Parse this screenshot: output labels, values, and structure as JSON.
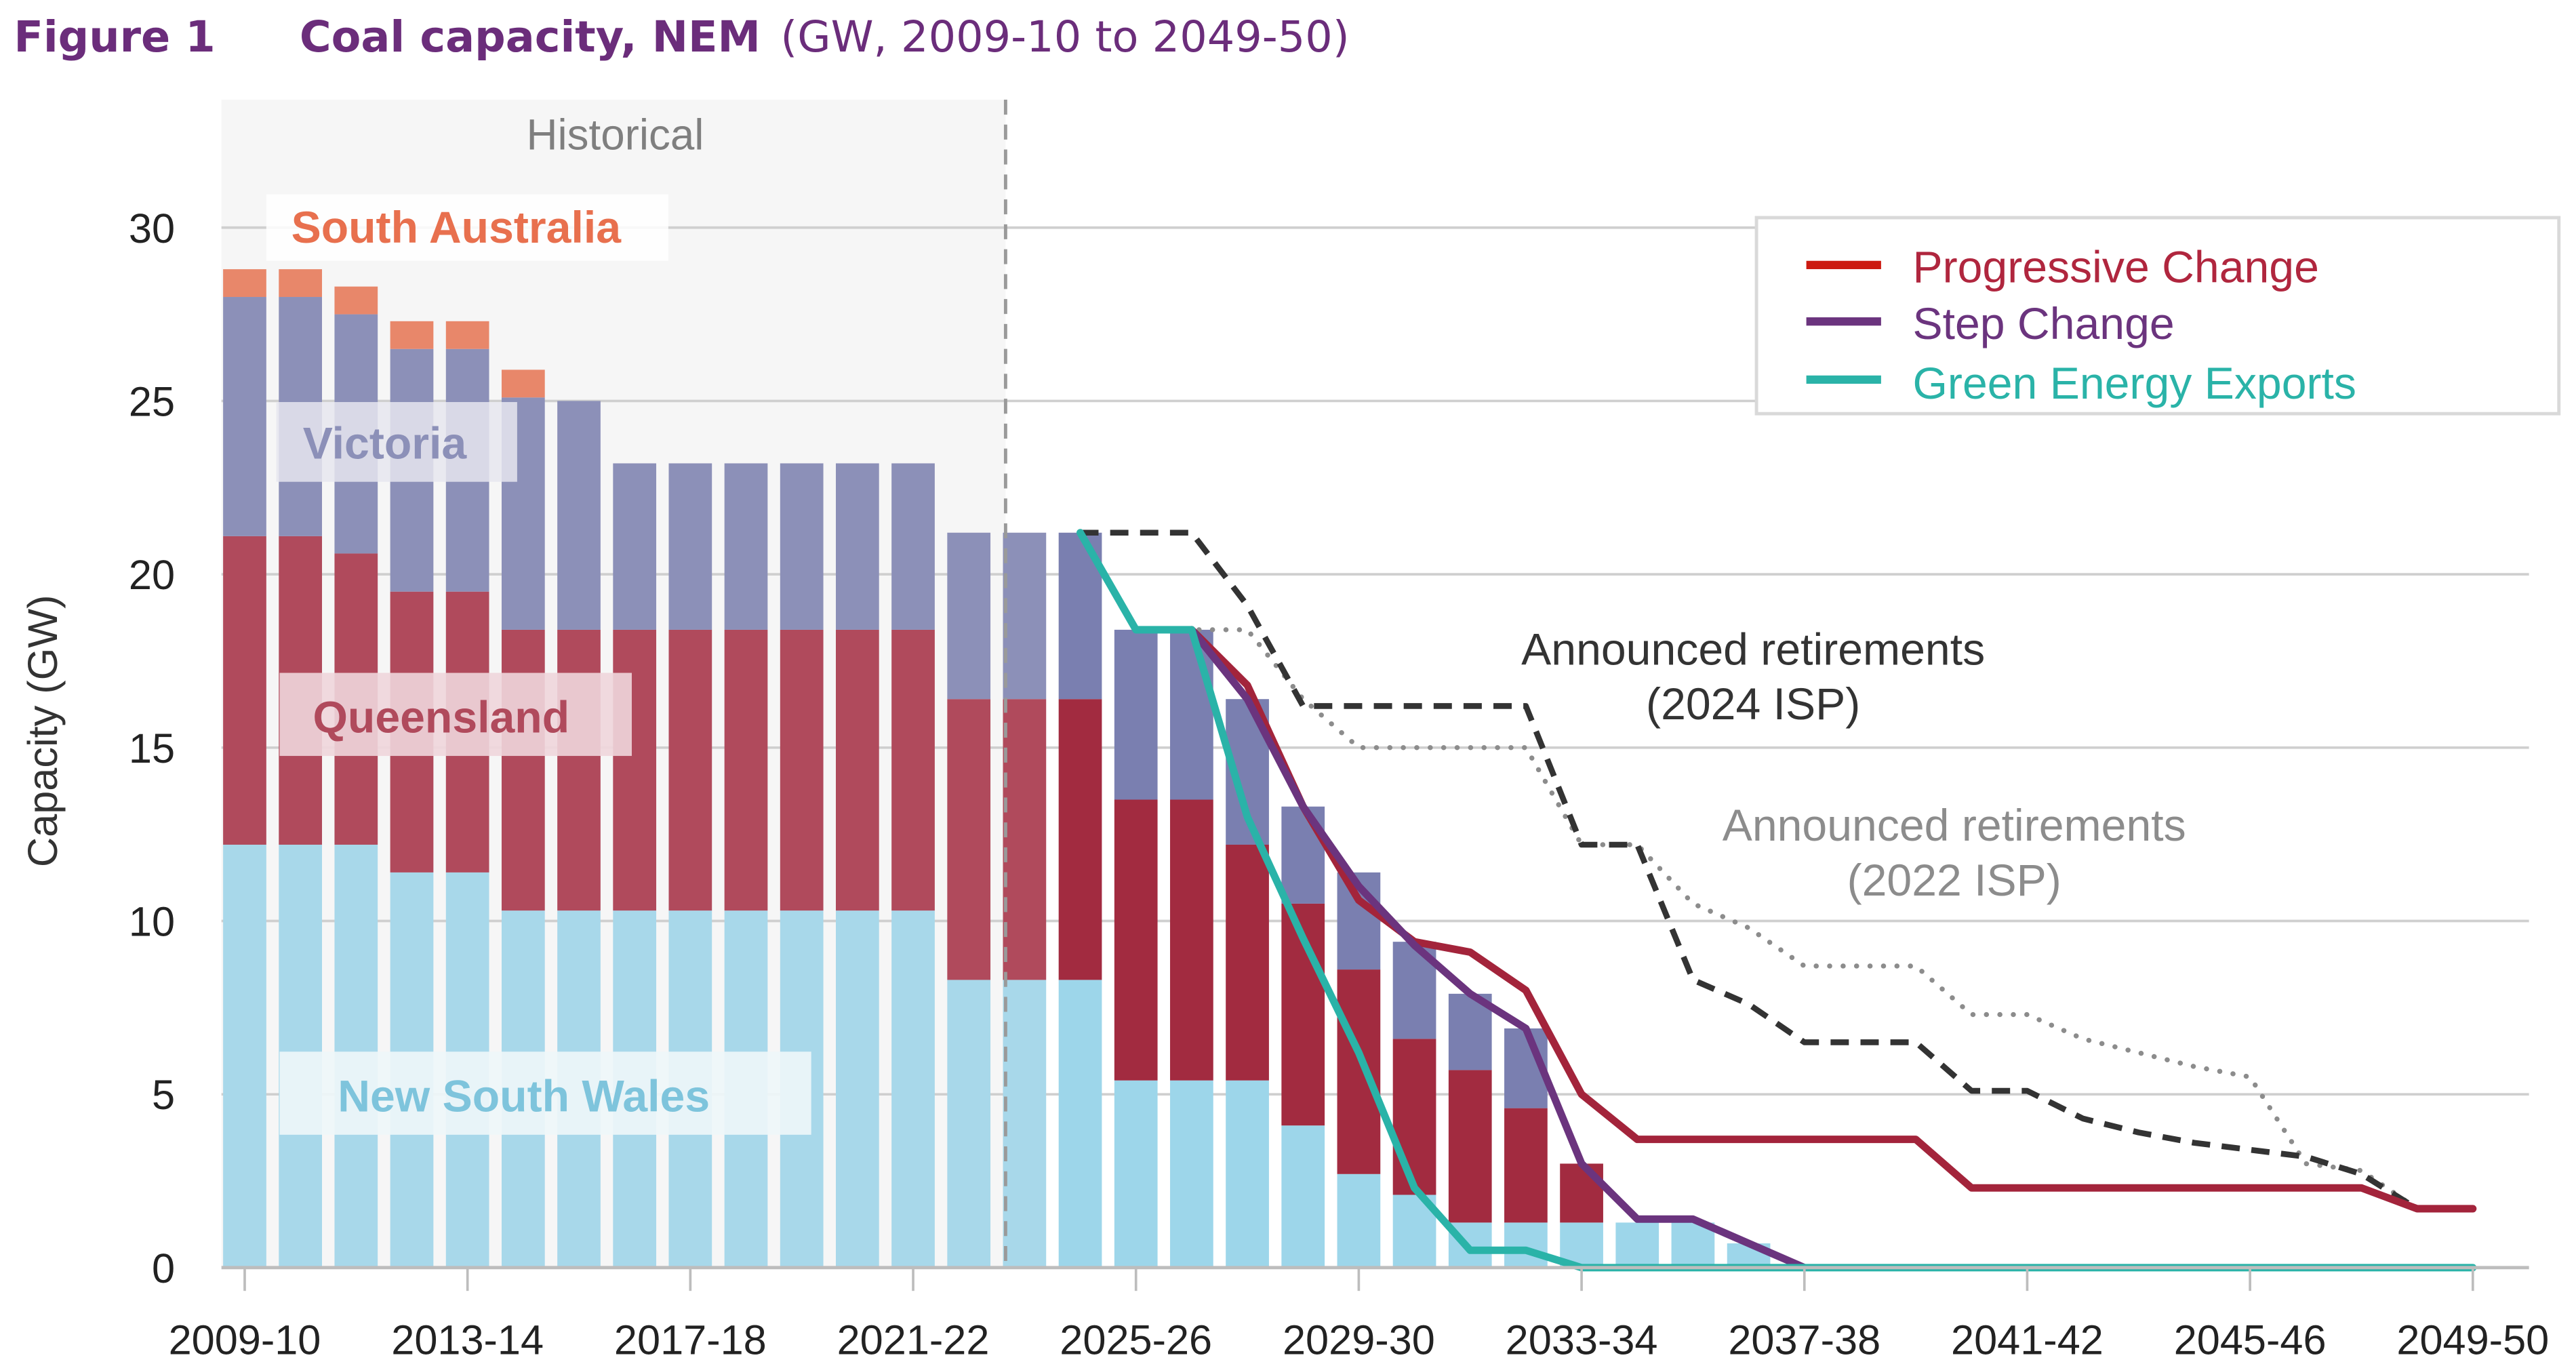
{
  "figure": {
    "number": "Figure 1",
    "title": "Coal capacity, NEM",
    "subtitle": "(GW, 2009-10 to 2049-50)"
  },
  "chart_data": {
    "type": "bar",
    "stacked": true,
    "title": "Coal capacity, NEM (GW, 2009-10 to 2049-50)",
    "xlabel": "",
    "ylabel": "Capacity (GW)",
    "ylim": [
      0,
      30
    ],
    "yticks": [
      0,
      5,
      10,
      15,
      20,
      25,
      30
    ],
    "grid": true,
    "legend_position": "top-right",
    "categories": [
      "2009-10",
      "2010-11",
      "2011-12",
      "2012-13",
      "2013-14",
      "2014-15",
      "2015-16",
      "2016-17",
      "2017-18",
      "2018-19",
      "2019-20",
      "2020-21",
      "2021-22",
      "2022-23",
      "2023-24",
      "2024-25",
      "2025-26",
      "2026-27",
      "2027-28",
      "2028-29",
      "2029-30",
      "2030-31",
      "2031-32",
      "2032-33",
      "2033-34",
      "2034-35",
      "2035-36",
      "2036-37",
      "2037-38",
      "2038-39",
      "2039-40",
      "2040-41",
      "2041-42",
      "2042-43",
      "2043-44",
      "2044-45",
      "2045-46",
      "2046-47",
      "2047-48",
      "2048-49",
      "2049-50"
    ],
    "xtick_labels": [
      "2009-10",
      "2013-14",
      "2017-18",
      "2021-22",
      "2025-26",
      "2029-30",
      "2033-34",
      "2037-38",
      "2041-42",
      "2045-46",
      "2049-50"
    ],
    "historical_label": "Historical",
    "historical_through": "2023-24",
    "series": [
      {
        "name": "New South Wales",
        "color": "#a8d8ea",
        "values": [
          12.2,
          12.2,
          12.2,
          11.4,
          11.4,
          10.3,
          10.3,
          10.3,
          10.3,
          10.3,
          10.3,
          10.3,
          10.3,
          8.3,
          8.3,
          8.3,
          5.4,
          5.4,
          5.4,
          4.1,
          2.7,
          2.1,
          1.3,
          1.3,
          1.3,
          1.3,
          1.3,
          0.7,
          0,
          0,
          0,
          0,
          0,
          0,
          0,
          0,
          0,
          0,
          0,
          0,
          0
        ]
      },
      {
        "name": "Queensland",
        "color": "#b04a5c",
        "values": [
          8.9,
          8.9,
          8.4,
          8.1,
          8.1,
          8.1,
          8.1,
          8.1,
          8.1,
          8.1,
          8.1,
          8.1,
          8.1,
          8.1,
          8.1,
          8.1,
          8.1,
          8.1,
          6.8,
          6.4,
          5.9,
          4.5,
          4.4,
          3.3,
          1.7,
          0,
          0,
          0,
          0,
          0,
          0,
          0,
          0,
          0,
          0,
          0,
          0,
          0,
          0,
          0,
          0
        ]
      },
      {
        "name": "Victoria",
        "color": "#8c90b8",
        "values": [
          6.9,
          6.9,
          6.9,
          7.0,
          7.0,
          6.7,
          6.6,
          4.8,
          4.8,
          4.8,
          4.8,
          4.8,
          4.8,
          4.8,
          4.8,
          4.8,
          4.9,
          4.9,
          4.2,
          2.8,
          2.8,
          2.8,
          2.2,
          2.3,
          0,
          0,
          0,
          0,
          0,
          0,
          0,
          0,
          0,
          0,
          0,
          0,
          0,
          0,
          0,
          0,
          0
        ]
      },
      {
        "name": "South Australia",
        "color": "#e8876a",
        "values": [
          0.8,
          0.8,
          0.8,
          0.8,
          0.8,
          0.8,
          0,
          0,
          0,
          0,
          0,
          0,
          0,
          0,
          0,
          0,
          0,
          0,
          0,
          0,
          0,
          0,
          0,
          0,
          0,
          0,
          0,
          0,
          0,
          0,
          0,
          0,
          0,
          0,
          0,
          0,
          0,
          0,
          0,
          0,
          0
        ]
      }
    ],
    "lines": [
      {
        "name": "Progressive Change",
        "color": "#a3243b",
        "legend_color": "#cc1a10",
        "style": "solid",
        "in_legend": true,
        "start": "2026-27",
        "values": [
          18.4,
          16.8,
          13.3,
          10.6,
          9.4,
          9.1,
          8.0,
          5.0,
          3.7,
          3.7,
          3.7,
          3.7,
          3.7,
          3.7,
          2.3,
          2.3,
          2.3,
          2.3,
          2.3,
          2.3,
          2.3,
          2.3,
          1.7,
          1.7
        ]
      },
      {
        "name": "Step Change",
        "color": "#6b347e",
        "style": "solid",
        "in_legend": true,
        "start": "2026-27",
        "values": [
          18.4,
          16.4,
          13.3,
          11.0,
          9.3,
          7.9,
          6.9,
          3.0,
          1.4,
          1.4,
          0.7,
          0
        ]
      },
      {
        "name": "Green Energy Exports",
        "color": "#2ab3a8",
        "style": "solid",
        "in_legend": true,
        "start": "2024-25",
        "values": [
          21.2,
          18.4,
          18.4,
          13.0,
          9.5,
          6.2,
          2.3,
          0.5,
          0.5,
          0,
          0,
          0,
          0,
          0,
          0,
          0,
          0,
          0,
          0,
          0,
          0,
          0,
          0,
          0,
          0,
          0
        ]
      },
      {
        "name": "Announced retirements (2024 ISP)",
        "color": "#333333",
        "style": "dashed",
        "in_legend": false,
        "start": "2024-25",
        "values": [
          21.2,
          21.2,
          21.2,
          19.1,
          16.2,
          16.2,
          16.2,
          16.2,
          16.2,
          12.2,
          12.2,
          8.3,
          7.6,
          6.5,
          6.5,
          6.5,
          5.1,
          5.1,
          4.3,
          3.9,
          3.6,
          3.4,
          3.2,
          2.7,
          1.7,
          1.7
        ]
      },
      {
        "name": "Announced retirements (2022 ISP)",
        "color": "#8c8c8c",
        "style": "dotted",
        "in_legend": false,
        "start": "2024-25",
        "values": [
          21.2,
          18.4,
          18.4,
          18.4,
          16.4,
          15.0,
          15.0,
          15.0,
          15.0,
          12.2,
          12.2,
          10.5,
          9.8,
          8.7,
          8.7,
          8.7,
          7.3,
          7.3,
          6.6,
          6.2,
          5.8,
          5.5,
          3.0,
          2.8,
          1.7,
          1.7
        ]
      }
    ],
    "annotations": [
      {
        "text": "Announced retirements",
        "subtext": "(2024 ISP)",
        "color": "#333333"
      },
      {
        "text": "Announced retirements",
        "subtext": "(2022 ISP)",
        "color": "#8c8c8c"
      }
    ],
    "region_labels": [
      {
        "text": "South Australia",
        "color": "#e8704e"
      },
      {
        "text": "Victoria",
        "color": "#8c90b8"
      },
      {
        "text": "Queensland",
        "color": "#b04a5c"
      },
      {
        "text": "New South Wales",
        "color": "#7ec4dc"
      }
    ]
  },
  "legend": {
    "items": [
      {
        "label": "Progressive Change",
        "color": "#cc1a10",
        "text_color": "#b0263e"
      },
      {
        "label": "Step Change",
        "color": "#6b347e",
        "text_color": "#6b347e"
      },
      {
        "label": "Green Energy Exports",
        "color": "#2ab3a8",
        "text_color": "#2ab3a8"
      }
    ]
  }
}
